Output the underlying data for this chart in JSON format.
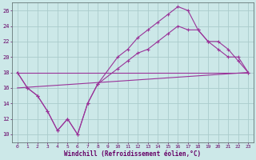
{
  "xlabel": "Windchill (Refroidissement éolien,°C)",
  "background_color": "#cce8e8",
  "grid_color": "#aacccc",
  "line_color": "#993399",
  "xlim": [
    -0.5,
    23.5
  ],
  "ylim": [
    9.0,
    27.0
  ],
  "yticks": [
    10,
    12,
    14,
    16,
    18,
    20,
    22,
    24,
    26
  ],
  "xticks": [
    0,
    1,
    2,
    3,
    4,
    5,
    6,
    7,
    8,
    9,
    10,
    11,
    12,
    13,
    14,
    15,
    16,
    17,
    18,
    19,
    20,
    21,
    22,
    23
  ],
  "line1_x": [
    0,
    1,
    2,
    3,
    4,
    5,
    6,
    7,
    8,
    10,
    11,
    12,
    13,
    14,
    15,
    16,
    17,
    18,
    19,
    20,
    21,
    22,
    23
  ],
  "line1_y": [
    18,
    16,
    15,
    13,
    10.5,
    12,
    10,
    14,
    16.5,
    20,
    21,
    22.5,
    23.5,
    24.5,
    25.5,
    26.5,
    26.0,
    23.5,
    22,
    22,
    21,
    19.5,
    18
  ],
  "line2_x": [
    0,
    1,
    2,
    3,
    4,
    5,
    6,
    7,
    8,
    10,
    11,
    12,
    13,
    14,
    15,
    16,
    17,
    18,
    19,
    20,
    21,
    22,
    23
  ],
  "line2_y": [
    18,
    16,
    15,
    13,
    10.5,
    12,
    10,
    14,
    16.5,
    18.5,
    19.5,
    20.5,
    21,
    22,
    23,
    24,
    23.5,
    23.5,
    22,
    21,
    20,
    20,
    18
  ],
  "line3_x": [
    0,
    23
  ],
  "line3_y": [
    16.0,
    18.0
  ],
  "line4_x": [
    0,
    23
  ],
  "line4_y": [
    18.0,
    18.0
  ]
}
